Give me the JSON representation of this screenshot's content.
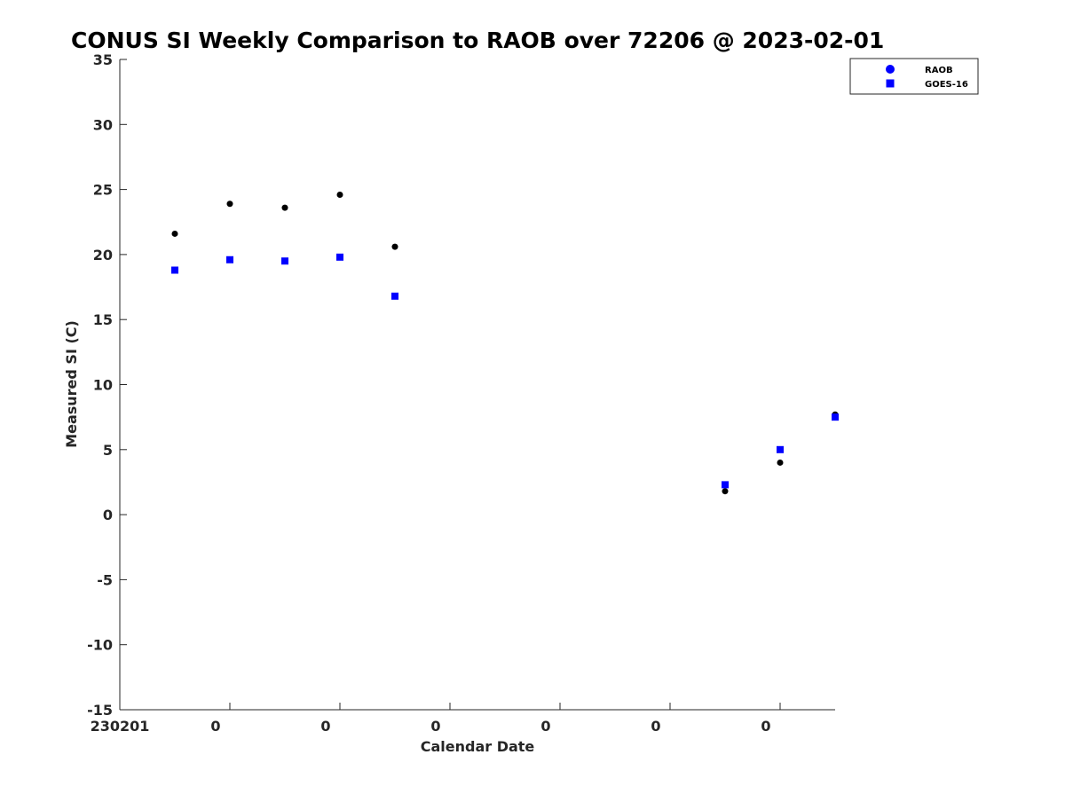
{
  "chart_data": {
    "type": "scatter",
    "title": "CONUS SI Weekly Comparison to RAOB over 72206 @ 2023-02-01",
    "xlabel": "Calendar Date",
    "ylabel": "Measured SI (C)",
    "xlim": [
      0,
      13
    ],
    "ylim": [
      -15,
      35
    ],
    "y_ticks": [
      -15,
      -10,
      -5,
      0,
      5,
      10,
      15,
      20,
      25,
      30,
      35
    ],
    "x_ticks": [
      {
        "value": 0,
        "label": "230201"
      },
      {
        "value": 2,
        "label": "0"
      },
      {
        "value": 4,
        "label": "0"
      },
      {
        "value": 6,
        "label": "0"
      },
      {
        "value": 8,
        "label": "0"
      },
      {
        "value": 10,
        "label": "0"
      },
      {
        "value": 12,
        "label": "0"
      }
    ],
    "grid": false,
    "legend_position": "top-right",
    "series": [
      {
        "name": "RAOB",
        "marker": "circle",
        "legend_color": "#0000ff",
        "point_color": "#000000",
        "points": [
          {
            "x": 1,
            "y": 21.6
          },
          {
            "x": 2,
            "y": 23.9
          },
          {
            "x": 3,
            "y": 23.6
          },
          {
            "x": 4,
            "y": 24.6
          },
          {
            "x": 5,
            "y": 20.6
          },
          {
            "x": 11,
            "y": 1.8
          },
          {
            "x": 12,
            "y": 4.0
          },
          {
            "x": 13,
            "y": 7.7
          }
        ]
      },
      {
        "name": "GOES-16",
        "marker": "square",
        "legend_color": "#0000ff",
        "point_color": "#0000ff",
        "points": [
          {
            "x": 1,
            "y": 18.8
          },
          {
            "x": 2,
            "y": 19.6
          },
          {
            "x": 3,
            "y": 19.5
          },
          {
            "x": 4,
            "y": 19.8
          },
          {
            "x": 5,
            "y": 16.8
          },
          {
            "x": 11,
            "y": 2.3
          },
          {
            "x": 12,
            "y": 5.0
          },
          {
            "x": 13,
            "y": 7.5
          }
        ]
      }
    ]
  }
}
